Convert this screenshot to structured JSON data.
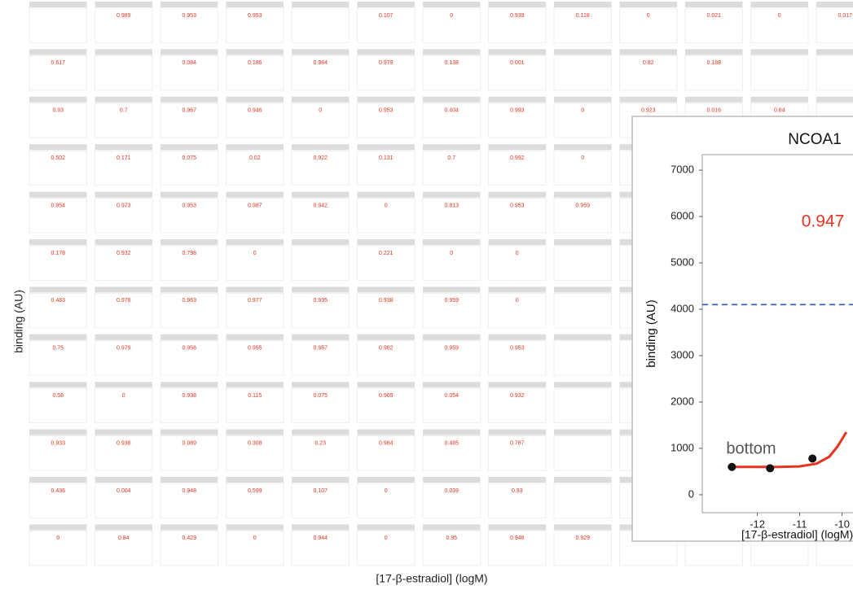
{
  "chart_data": [
    {
      "type": "small-multiples",
      "y_label": "binding (AU)",
      "x_label": "[17-β-estradiol] (logM)",
      "scores": [
        [
          null,
          "0.989",
          "0.953",
          "0.953",
          null,
          "0.107",
          "0",
          "0.939",
          "0.118",
          "0",
          "0.021",
          "0",
          "0.017"
        ],
        [
          "0.617",
          null,
          "0.084",
          "0.186",
          "0.984",
          "0.979",
          "0.138",
          "0.001",
          null,
          "0.82",
          "0.188",
          null,
          null
        ],
        [
          "0.93",
          "0.7",
          "0.967",
          "0.946",
          "0",
          "0.953",
          "0.404",
          "0.993",
          "0",
          "0.923",
          "0.016",
          "0.84",
          null
        ],
        [
          "0.502",
          "0.171",
          "0.075",
          "0.02",
          "0.922",
          "0.131",
          "0.7",
          "0.992",
          "0",
          null,
          null,
          null,
          null
        ],
        [
          "0.954",
          "0.973",
          "0.953",
          "0.987",
          "0.942",
          "0",
          "0.813",
          "0.953",
          "0.959",
          null,
          null,
          null,
          null
        ],
        [
          "0.178",
          "0.932",
          "0.798",
          "0",
          null,
          "0.221",
          "0",
          "0",
          null,
          null,
          null,
          null,
          null
        ],
        [
          "0.483",
          "0.978",
          "0.963",
          "0.977",
          "0.935",
          "0.938",
          "0.959",
          "0",
          null,
          null,
          null,
          null,
          null
        ],
        [
          "0.75",
          "0.979",
          "0.956",
          "0.955",
          "0.957",
          "0.962",
          "0.959",
          "0.953",
          null,
          null,
          null,
          null,
          null
        ],
        [
          "0.58",
          "0",
          "0.938",
          "0.115",
          "0.075",
          "0.909",
          "0.054",
          "0.932",
          null,
          null,
          null,
          null,
          null
        ],
        [
          "0.933",
          "0.938",
          "0.089",
          "0.308",
          "0.23",
          "0.984",
          "0.485",
          "0.787",
          null,
          null,
          null,
          null,
          null
        ],
        [
          "0.436",
          "0.004",
          "0.948",
          "0.599",
          "0.107",
          "0",
          "0.039",
          "0.93",
          null,
          null,
          null,
          null,
          null
        ],
        [
          "0",
          "0.84",
          "0.429",
          "0",
          "0.944",
          "0",
          "0.95",
          "0.946",
          "0.929",
          null,
          null,
          null,
          null
        ]
      ]
    },
    {
      "type": "line",
      "title": "NCOA1",
      "y_label": "binding (AU)",
      "x_label": "[17-β-estradiol] (logM)",
      "score": "0.947",
      "annotation": "bottom",
      "xlim": [
        -13.3,
        -9.8
      ],
      "ylim": [
        -300,
        7300
      ],
      "xticks": [
        -12,
        -11,
        -10
      ],
      "yticks": [
        0,
        1000,
        2000,
        3000,
        4000,
        5000,
        6000,
        7000
      ],
      "threshold": 4100,
      "points": {
        "x": [
          -12.6,
          -11.7,
          -10.7
        ],
        "values": [
          600,
          570,
          780
        ],
        "color": "#111111"
      },
      "fit": {
        "x": [
          -12.7,
          -12,
          -11.5,
          -11,
          -10.6,
          -10.3,
          -10.1,
          -9.9
        ],
        "values": [
          600,
          600,
          600,
          610,
          670,
          820,
          1050,
          1350
        ],
        "color": "#e8331f"
      }
    }
  ]
}
